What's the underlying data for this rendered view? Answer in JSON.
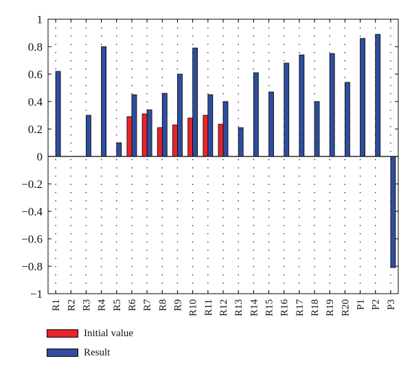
{
  "chart_data": {
    "type": "bar",
    "title": "",
    "xlabel": "",
    "ylabel": "",
    "ylim": [
      -1,
      1
    ],
    "yticks": [
      1,
      0.8,
      0.6,
      0.4,
      0.2,
      0,
      -0.2,
      -0.4,
      -0.6,
      -0.8,
      -1
    ],
    "ytick_labels": [
      "1",
      "0.8",
      "0.6",
      "0.4",
      "0.2",
      "0",
      "−0.2",
      "−0.4",
      "−0.6",
      "−0.8",
      "−1"
    ],
    "categories": [
      "R1",
      "R2",
      "R3",
      "R4",
      "R5",
      "R6",
      "R7",
      "R8",
      "R9",
      "R10",
      "R11",
      "R12",
      "R13",
      "R14",
      "R15",
      "R16",
      "R17",
      "R18",
      "R19",
      "R20",
      "P1",
      "P2",
      "P3"
    ],
    "grid": "dotted",
    "legend_position": "bottom-left",
    "series": [
      {
        "name": "Initial value",
        "color": "#e8242b",
        "values": [
          0,
          0,
          0,
          0,
          0,
          0.29,
          0.31,
          0.21,
          0.23,
          0.28,
          0.3,
          0.235,
          0,
          0,
          0,
          0,
          0,
          0,
          0,
          0,
          0,
          0,
          0
        ]
      },
      {
        "name": "Result",
        "color": "#2f4d9e",
        "values": [
          0.62,
          0,
          0.3,
          0.8,
          0.1,
          0.45,
          0.34,
          0.46,
          0.6,
          0.79,
          0.45,
          0.4,
          0.21,
          0.61,
          0.47,
          0.68,
          0.74,
          0.4,
          0.75,
          0.54,
          0.86,
          0.89,
          -0.81
        ]
      }
    ]
  }
}
